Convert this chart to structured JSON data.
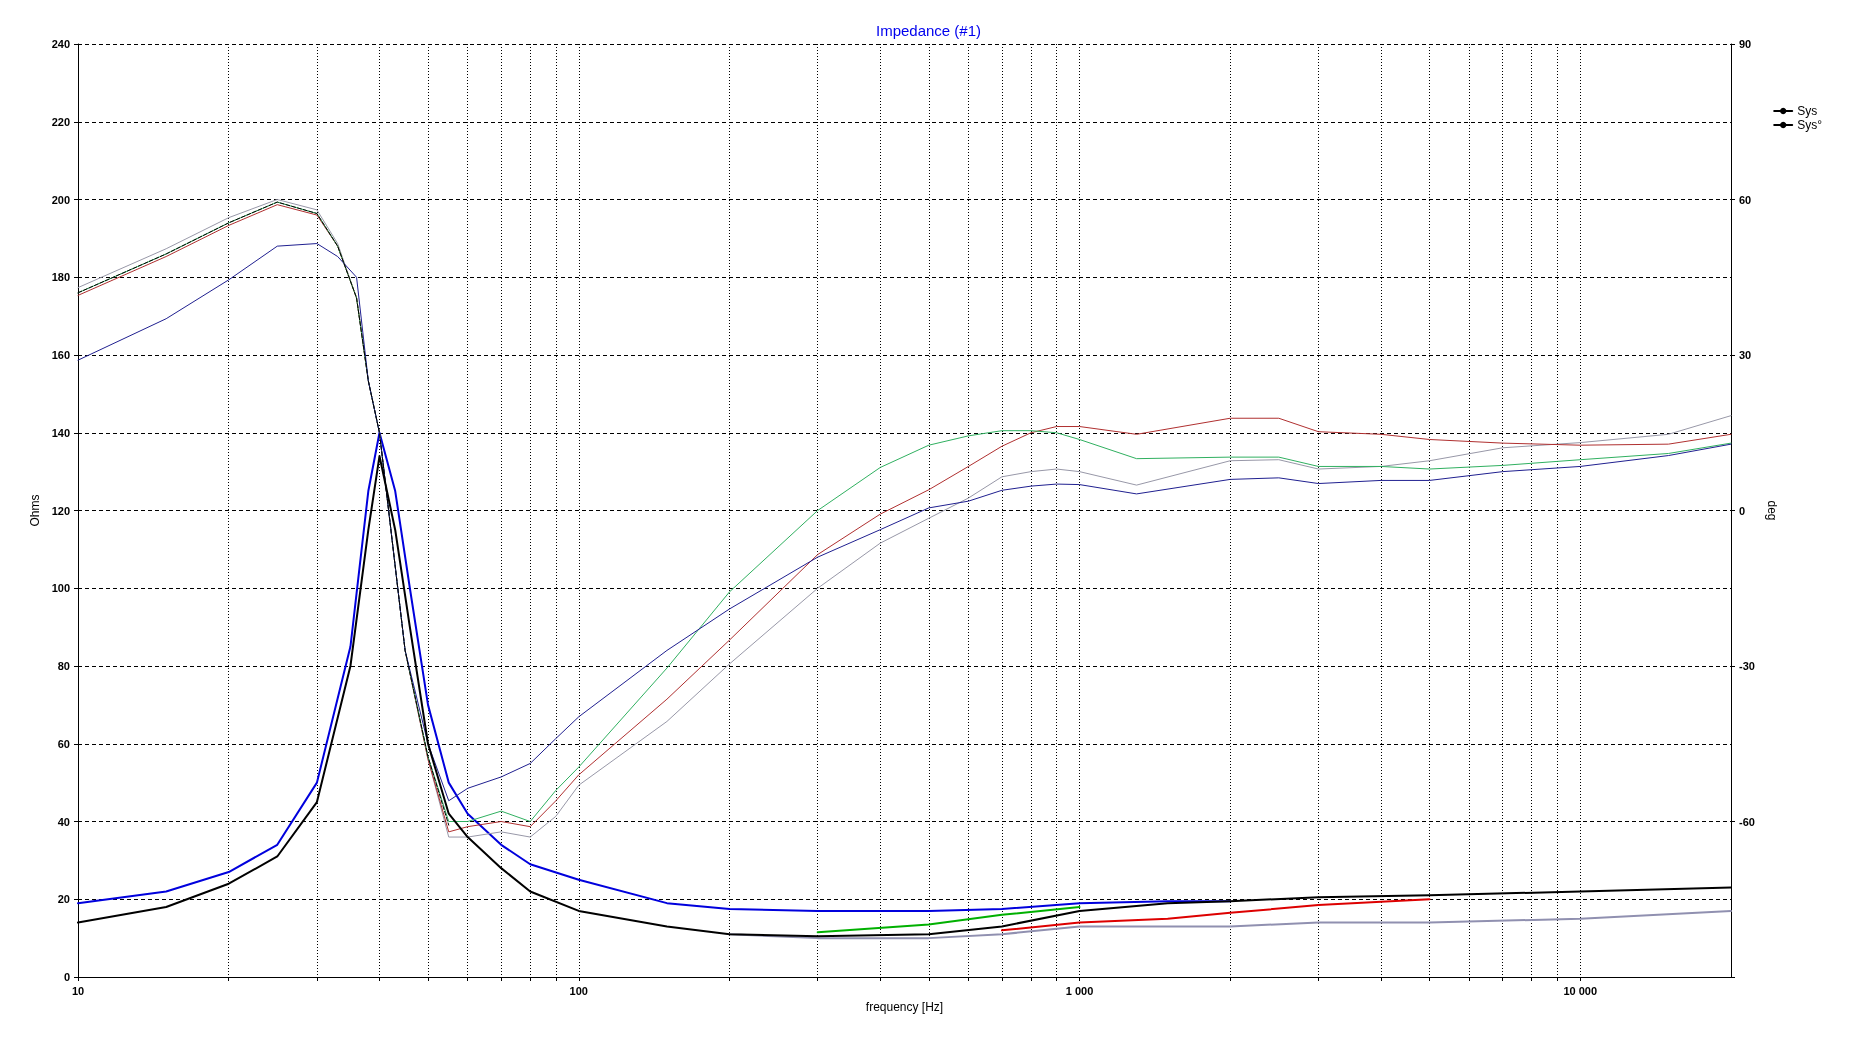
{
  "chart_data": {
    "type": "line",
    "title": "Impedance (#1)",
    "xlabel": "frequency [Hz]",
    "ylabel": "Ohms",
    "y2label": "deg",
    "log": "x",
    "grid": true,
    "legend": "top right",
    "marker": "none",
    "line_style": "solid",
    "xlim": [
      10,
      20000
    ],
    "xticks": [
      10,
      {
        "value": 20,
        "label": null
      },
      {
        "value": 30,
        "label": null
      },
      {
        "value": 40,
        "label": null
      },
      {
        "value": 50,
        "label": null
      },
      {
        "value": 60,
        "label": null
      },
      {
        "value": 70,
        "label": null
      },
      {
        "value": 80,
        "label": null
      },
      {
        "value": 90,
        "label": null
      },
      100,
      {
        "value": 200,
        "label": null
      },
      {
        "value": 300,
        "label": null
      },
      {
        "value": 400,
        "label": null
      },
      {
        "value": 500,
        "label": null
      },
      {
        "value": 600,
        "label": null
      },
      {
        "value": 700,
        "label": null
      },
      {
        "value": 800,
        "label": null
      },
      {
        "value": 900,
        "label": null
      },
      {
        "value": 1000,
        "label": "1 000"
      },
      {
        "value": 2000,
        "label": null
      },
      {
        "value": 3000,
        "label": null
      },
      {
        "value": 4000,
        "label": null
      },
      {
        "value": 5000,
        "label": null
      },
      {
        "value": 6000,
        "label": null
      },
      {
        "value": 7000,
        "label": null
      },
      {
        "value": 8000,
        "label": null
      },
      {
        "value": 9000,
        "label": null
      },
      {
        "value": 10000,
        "label": "10 000"
      }
    ],
    "ylim": [
      0,
      240
    ],
    "yticks": [
      0,
      20,
      40,
      60,
      80,
      100,
      120,
      140,
      160,
      180,
      200,
      220,
      240
    ],
    "y2lim": [
      -90,
      90
    ],
    "y2ticks": [
      {
        "value": -90,
        "label": null
      },
      -60,
      -30,
      0,
      30,
      60,
      90
    ],
    "series": [
      {
        "color": "#9090b0",
        "x": [
          200,
          300,
          500,
          700,
          1000,
          1500,
          2000,
          3000,
          5000,
          10000,
          20000
        ],
        "values": [
          11,
          10,
          10,
          11,
          13,
          13,
          13,
          14,
          14,
          15,
          17
        ]
      },
      {
        "color": "#00b000",
        "x": [
          300,
          500,
          700,
          1000
        ],
        "values": [
          11.5,
          13.5,
          16,
          18
        ]
      },
      {
        "color": "#dd0000",
        "x": [
          700,
          1000,
          1500,
          2000,
          3000,
          5000
        ],
        "values": [
          12,
          14,
          15,
          16.5,
          18.5,
          20
        ]
      },
      {
        "color": "#0000dd",
        "x": [
          10,
          15,
          20,
          25,
          30,
          35,
          38,
          40,
          43,
          46,
          50,
          55,
          60,
          70,
          80,
          100,
          150,
          200,
          300,
          500,
          700,
          1000,
          1500,
          2000
        ],
        "values": [
          19,
          22,
          27,
          34,
          50,
          85,
          125,
          140,
          125,
          100,
          70,
          50,
          42,
          34,
          29,
          25,
          19,
          17.5,
          17,
          17,
          17.5,
          19,
          19.5,
          19.5
        ]
      },
      {
        "name": "Sys",
        "color": "#000000",
        "x": [
          10,
          15,
          20,
          25,
          30,
          35,
          38,
          40,
          43,
          46,
          50,
          55,
          60,
          70,
          80,
          100,
          150,
          200,
          300,
          500,
          700,
          1000,
          1500,
          2000,
          3000,
          5000,
          10000,
          20000
        ],
        "values": [
          14,
          18,
          24,
          31,
          45,
          80,
          115,
          134,
          115,
          90,
          60,
          42,
          36,
          28,
          22,
          17,
          13,
          11,
          10.5,
          11,
          13,
          17,
          19,
          19.5,
          20.5,
          21,
          22,
          23
        ]
      },
      {
        "axis": "y2",
        "color": "#9898a8",
        "x": [
          10,
          15,
          20,
          25,
          30,
          33,
          36,
          38,
          40,
          45,
          50,
          55,
          60,
          70,
          80,
          90,
          100,
          150,
          200,
          300,
          400,
          500,
          600,
          700,
          800,
          900,
          1000,
          1300,
          2000,
          2500,
          3000,
          4000,
          5000,
          7000,
          10000,
          15000,
          20000
        ],
        "values": [
          43,
          50.5,
          56.5,
          60,
          58,
          51.5,
          41,
          25,
          15,
          -27,
          -48,
          -63,
          -63,
          -62,
          -63,
          -59,
          -53,
          -40.7,
          -29.6,
          -15,
          -6.3,
          -1.5,
          2.4,
          6.5,
          7.5,
          8,
          7.5,
          4.9,
          9.6,
          9.8,
          8,
          8.5,
          9.6,
          12.1,
          13.1,
          14.7,
          18.3
        ]
      },
      {
        "axis": "y2",
        "color": "#b03030",
        "x": [
          10,
          15,
          20,
          25,
          30,
          33,
          36,
          38,
          40,
          45,
          50,
          55,
          60,
          70,
          80,
          90,
          100,
          150,
          200,
          300,
          400,
          500,
          600,
          700,
          800,
          900,
          1000,
          1300,
          2000,
          2500,
          3000,
          4000,
          5000,
          7000,
          10000,
          15000,
          20000
        ],
        "values": [
          41.5,
          49,
          55,
          59,
          57,
          51,
          41,
          25,
          15,
          -27,
          -48,
          -62,
          -61,
          -60,
          -61,
          -56,
          -51,
          -36.4,
          -25,
          -8.5,
          -0.7,
          4,
          8.5,
          12.4,
          15,
          16.2,
          16.2,
          14.7,
          17.8,
          17.8,
          15.2,
          14.7,
          13.7,
          13,
          12.6,
          12.8,
          14.7
        ]
      },
      {
        "axis": "y2",
        "color": "#30b060",
        "x": [
          10,
          15,
          20,
          25,
          30,
          33,
          36,
          38,
          40,
          45,
          50,
          55,
          60,
          70,
          80,
          90,
          100,
          150,
          200,
          300,
          400,
          500,
          600,
          700,
          800,
          900,
          1000,
          1300,
          2000,
          2500,
          3000,
          4000,
          5000,
          7000,
          10000,
          15000,
          20000
        ],
        "values": [
          42,
          49.5,
          55.5,
          59.5,
          57.3,
          51,
          41,
          25,
          15,
          -27,
          -47.5,
          -60,
          -60,
          -58,
          -60,
          -54,
          -49.5,
          -30.4,
          -15.7,
          0,
          8.3,
          12.6,
          14.4,
          15.4,
          15.4,
          15,
          13.7,
          10,
          10.3,
          10.3,
          8.5,
          8.5,
          8,
          8.7,
          9.8,
          11,
          13
        ]
      },
      {
        "axis": "y2",
        "color": "#202090",
        "x": [
          10,
          15,
          20,
          25,
          30,
          33,
          36,
          38,
          40,
          45,
          50,
          55,
          60,
          70,
          80,
          90,
          100,
          150,
          200,
          300,
          400,
          500,
          600,
          700,
          800,
          900,
          1000,
          1300,
          2000,
          2500,
          3000,
          4000,
          5000,
          7000,
          10000,
          15000,
          20000
        ],
        "values": [
          29,
          37,
          44.5,
          51,
          51.5,
          49,
          45,
          25,
          15,
          -27,
          -45,
          -56,
          -53.6,
          -51.4,
          -48.8,
          -44,
          -39.8,
          -27,
          -19,
          -9,
          -3.7,
          0.5,
          1.8,
          3.9,
          4.7,
          5.1,
          5,
          3.2,
          6,
          6.3,
          5.2,
          5.8,
          5.8,
          7.5,
          8.5,
          10.6,
          12.8
        ]
      },
      {
        "name": "Sys°",
        "axis": "y2",
        "color": "#000000",
        "line_style": "dashed",
        "x": [
          10,
          15,
          20,
          25,
          30,
          33,
          36,
          38,
          40,
          45,
          50,
          55
        ],
        "values": [
          42,
          49.5,
          55.5,
          59.5,
          57.3,
          51,
          41,
          25,
          15,
          -27,
          -47.5,
          -60.7
        ]
      }
    ]
  }
}
